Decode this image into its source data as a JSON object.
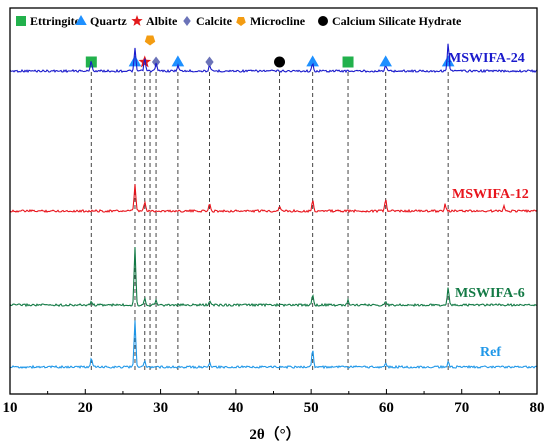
{
  "chart_data": {
    "type": "line",
    "xlabel": "2θ（°）",
    "ylabel": "",
    "xlim": [
      10,
      80
    ],
    "xticks": [
      10,
      20,
      30,
      40,
      50,
      60,
      70,
      80
    ],
    "legend_position": "top",
    "legend": [
      {
        "name": "Ettringite",
        "marker": "square",
        "color": "#22b14c"
      },
      {
        "name": "Quartz",
        "marker": "triangle",
        "color": "#1e90ff"
      },
      {
        "name": "Albite",
        "marker": "star",
        "color": "#e31a1c"
      },
      {
        "name": "Calcite",
        "marker": "diamond",
        "color": "#6b73b8"
      },
      {
        "name": "Microcline",
        "marker": "pentagon",
        "color": "#f39c12"
      },
      {
        "name": "Calcium Silicate Hydrate",
        "marker": "circle",
        "color": "#000000"
      }
    ],
    "reference_lines": [
      20.8,
      26.6,
      27.9,
      28.6,
      29.4,
      32.3,
      36.5,
      45.8,
      50.2,
      54.9,
      59.9,
      68.2
    ],
    "phase_markers": [
      {
        "phase": "Ettringite",
        "x": 20.8
      },
      {
        "phase": "Quartz",
        "x": 26.6
      },
      {
        "phase": "Albite",
        "x": 27.9
      },
      {
        "phase": "Microcline",
        "x": 28.6
      },
      {
        "phase": "Calcite",
        "x": 29.4
      },
      {
        "phase": "Quartz",
        "x": 32.3
      },
      {
        "phase": "Calcite",
        "x": 36.5
      },
      {
        "phase": "Calcium Silicate Hydrate",
        "x": 45.8
      },
      {
        "phase": "Quartz",
        "x": 50.2
      },
      {
        "phase": "Ettringite",
        "x": 54.9
      },
      {
        "phase": "Quartz",
        "x": 59.9
      },
      {
        "phase": "Quartz",
        "x": 68.2
      }
    ],
    "series": [
      {
        "name": "MSWIFA-24",
        "color": "#1a1acc",
        "peaks": [
          {
            "x": 20.8,
            "h": 0.45
          },
          {
            "x": 26.6,
            "h": 1.0
          },
          {
            "x": 27.9,
            "h": 0.55
          },
          {
            "x": 29.4,
            "h": 0.35
          },
          {
            "x": 32.3,
            "h": 0.25
          },
          {
            "x": 36.5,
            "h": 0.2
          },
          {
            "x": 50.2,
            "h": 0.3
          },
          {
            "x": 59.9,
            "h": 0.25
          },
          {
            "x": 68.2,
            "h": 1.3
          }
        ]
      },
      {
        "name": "MSWIFA-12",
        "color": "#e8141c",
        "peaks": [
          {
            "x": 26.6,
            "h": 1.0
          },
          {
            "x": 27.9,
            "h": 0.35
          },
          {
            "x": 36.5,
            "h": 0.25
          },
          {
            "x": 45.8,
            "h": 0.2
          },
          {
            "x": 50.2,
            "h": 0.4
          },
          {
            "x": 59.9,
            "h": 0.45
          },
          {
            "x": 67.8,
            "h": 0.25
          },
          {
            "x": 75.6,
            "h": 0.2
          }
        ]
      },
      {
        "name": "MSWIFA-6",
        "color": "#137a45",
        "peaks": [
          {
            "x": 20.8,
            "h": 0.15
          },
          {
            "x": 26.6,
            "h": 2.4
          },
          {
            "x": 27.9,
            "h": 0.3
          },
          {
            "x": 29.4,
            "h": 0.2
          },
          {
            "x": 36.5,
            "h": 0.15
          },
          {
            "x": 50.2,
            "h": 0.45
          },
          {
            "x": 54.9,
            "h": 0.2
          },
          {
            "x": 59.9,
            "h": 0.15
          },
          {
            "x": 68.2,
            "h": 0.7
          }
        ]
      },
      {
        "name": "Ref",
        "color": "#1f97e8",
        "peaks": [
          {
            "x": 20.8,
            "h": 0.35
          },
          {
            "x": 26.6,
            "h": 1.9
          },
          {
            "x": 27.9,
            "h": 0.25
          },
          {
            "x": 36.5,
            "h": 0.15
          },
          {
            "x": 50.2,
            "h": 0.75
          },
          {
            "x": 59.9,
            "h": 0.15
          },
          {
            "x": 68.2,
            "h": 0.2
          }
        ]
      }
    ]
  }
}
